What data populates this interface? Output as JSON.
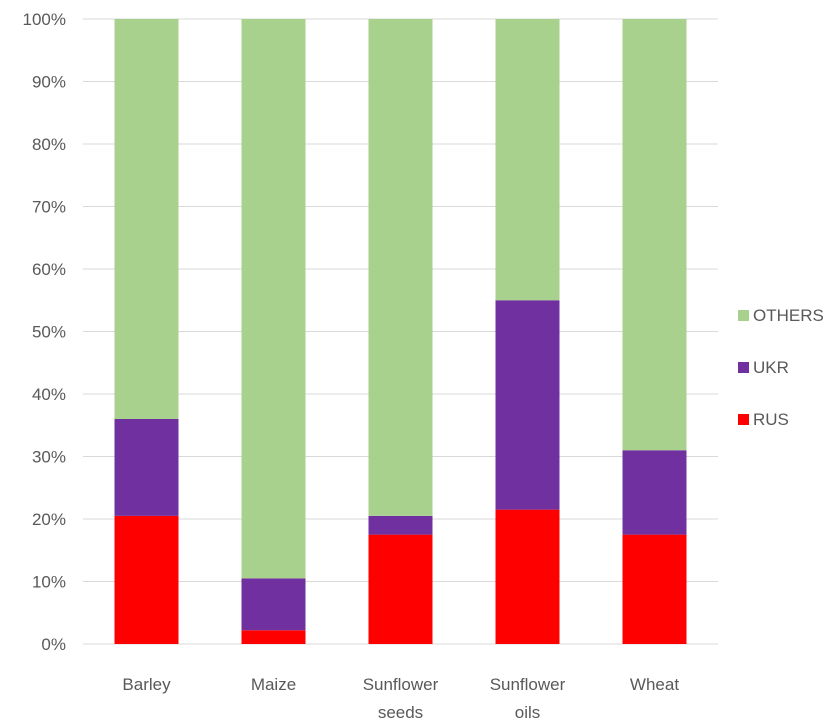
{
  "chart_data": {
    "type": "bar",
    "stacked": true,
    "percent_scale": true,
    "categories": [
      [
        "Barley"
      ],
      [
        "Maize"
      ],
      [
        "Sunflower",
        "seeds"
      ],
      [
        "Sunflower",
        "oils"
      ],
      [
        "Wheat"
      ]
    ],
    "series": [
      {
        "name": "RUS",
        "color": "#ff0000",
        "values": [
          20.5,
          2.2,
          17.5,
          21.5,
          17.5
        ]
      },
      {
        "name": "UKR",
        "color": "#7030a0",
        "values": [
          15.5,
          8.3,
          3.0,
          33.5,
          13.5
        ]
      },
      {
        "name": "OTHERS",
        "color": "#a9d18e",
        "values": [
          64.0,
          89.5,
          79.5,
          45.0,
          69.0
        ]
      }
    ],
    "ylim": [
      0,
      100
    ],
    "yticks": [
      "0%",
      "10%",
      "20%",
      "30%",
      "40%",
      "50%",
      "60%",
      "70%",
      "80%",
      "90%",
      "100%"
    ],
    "grid": true,
    "legend_position": "right",
    "legend_order": [
      "OTHERS",
      "UKR",
      "RUS"
    ],
    "title": "",
    "xlabel": "",
    "ylabel": ""
  }
}
